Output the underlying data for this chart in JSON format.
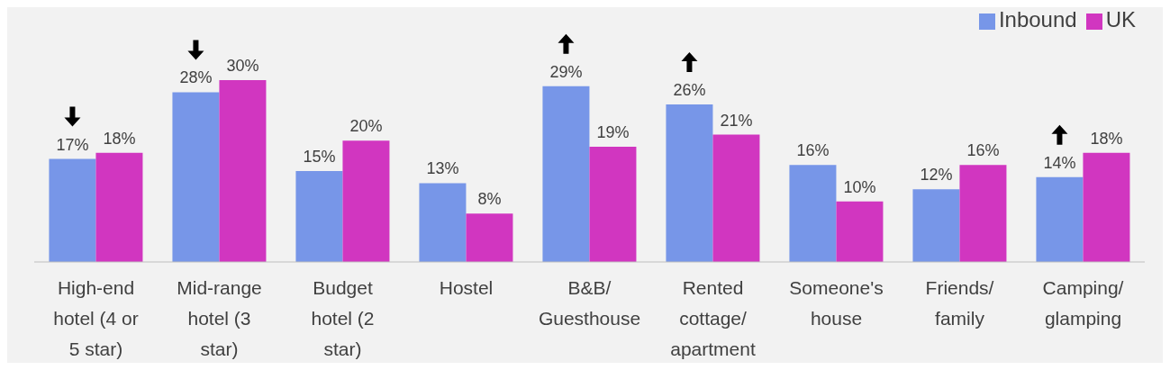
{
  "chart_data": {
    "type": "bar",
    "categories": [
      "High-end hotel (4 or 5 star)",
      "Mid-range hotel (3 star)",
      "Budget hotel (2 star)",
      "Hostel",
      "B&B/Guesthouse",
      "Rented cottage/ apartment",
      "Someone's house",
      "Friends/ family",
      "Camping/glamping"
    ],
    "series": [
      {
        "name": "Inbound",
        "color": "#7796e8",
        "values": [
          17,
          28,
          15,
          13,
          29,
          26,
          16,
          12,
          14
        ],
        "value_labels": [
          "17%",
          "28%",
          "15%",
          "13%",
          "29%",
          "26%",
          "16%",
          "12%",
          "14%"
        ]
      },
      {
        "name": "UK",
        "color": "#d136c0",
        "values": [
          18,
          30,
          20,
          8,
          19,
          21,
          10,
          16,
          18
        ],
        "value_labels": [
          "18%",
          "30%",
          "20%",
          "8%",
          "19%",
          "21%",
          "10%",
          "16%",
          "18%"
        ]
      }
    ],
    "legend": "top right"
  }
}
